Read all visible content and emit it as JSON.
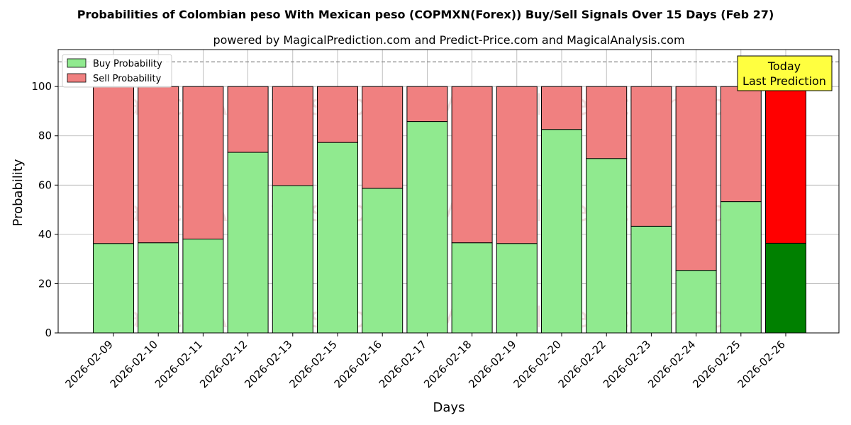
{
  "chart_data": {
    "type": "bar",
    "stacked": true,
    "title": "Probabilities of Colombian peso With Mexican peso (COPMXN(Forex)) Buy/Sell Signals Over 15 Days (Feb 27)",
    "subtitle": "powered by MagicalPrediction.com and Predict-Price.com and MagicalAnalysis.com",
    "xlabel": "Days",
    "ylabel": "Probability",
    "ylim": [
      0,
      115
    ],
    "yticks": [
      0,
      20,
      40,
      60,
      80,
      100
    ],
    "grid": true,
    "legend_position": "top-left",
    "reference_line": 110,
    "categories": [
      "2026-02-09",
      "2026-02-10",
      "2026-02-11",
      "2026-02-12",
      "2026-02-13",
      "2026-02-15",
      "2026-02-16",
      "2026-02-17",
      "2026-02-18",
      "2026-02-19",
      "2026-02-20",
      "2026-02-22",
      "2026-02-23",
      "2026-02-24",
      "2026-02-25",
      "2026-02-26"
    ],
    "series": [
      {
        "name": "Buy Probability",
        "color": "#90ea8f",
        "values": [
          36.3,
          36.6,
          38.1,
          73.3,
          59.8,
          77.3,
          58.7,
          85.8,
          36.6,
          36.3,
          82.6,
          70.8,
          43.3,
          25.4,
          53.3,
          36.4
        ]
      },
      {
        "name": "Sell Probability",
        "color": "#f08080",
        "values": [
          63.7,
          63.4,
          61.9,
          26.7,
          40.2,
          22.7,
          41.3,
          14.2,
          63.4,
          63.7,
          17.4,
          29.2,
          56.7,
          74.6,
          46.7,
          63.6
        ]
      }
    ],
    "today": {
      "buy_color": "#008000",
      "sell_color": "#ff0000"
    },
    "annotation": {
      "line1": "Today",
      "line2": "Last Prediction",
      "background": "#ffff40"
    },
    "watermarks": [
      "MagicalAnalysis.com",
      "MagicalPrediction.com"
    ]
  }
}
